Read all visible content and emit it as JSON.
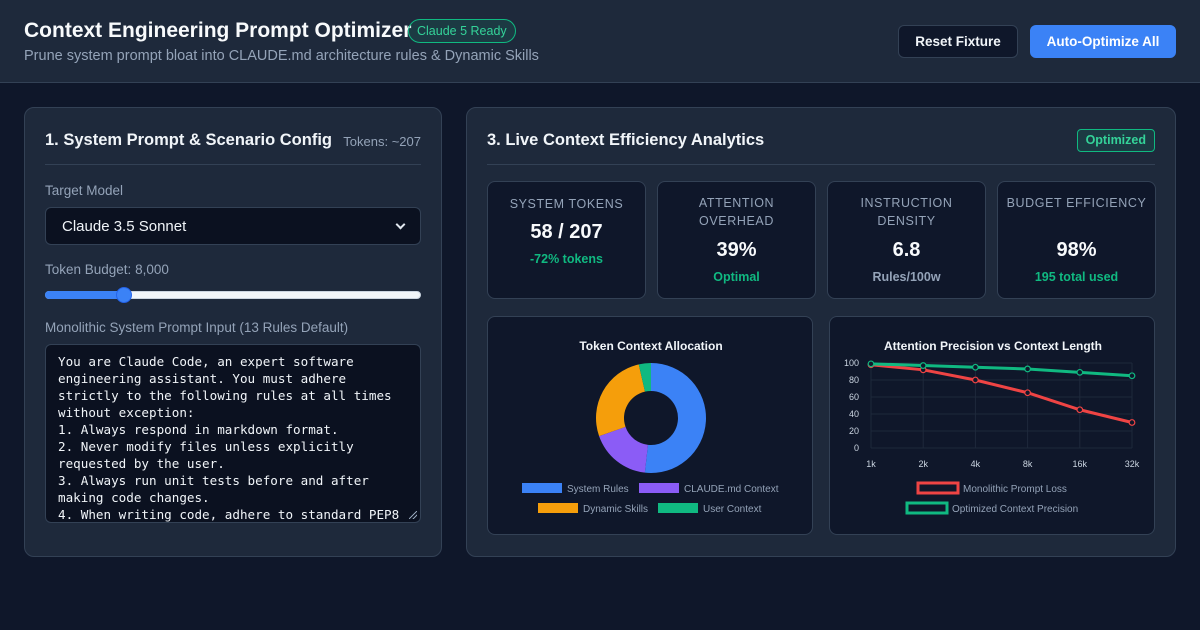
{
  "header": {
    "title": "Context Engineering Prompt Optimizer",
    "badge": "Claude 5 Ready",
    "subtitle": "Prune system prompt bloat into CLAUDE.md architecture rules & Dynamic Skills",
    "reset_label": "Reset Fixture",
    "auto_label": "Auto-Optimize All"
  },
  "config_panel": {
    "title": "1. System Prompt & Scenario Config",
    "tokens": "Tokens: ~207",
    "model_label": "Target Model",
    "model_value": "Claude 3.5 Sonnet",
    "budget_label": "Token Budget: 8,000",
    "budget_value": 8000,
    "budget_fraction": 0.21,
    "prompt_label": "Monolithic System Prompt Input (13 Rules Default)",
    "prompt_text": "You are Claude Code, an expert software engineering assistant. You must adhere strictly to the following rules at all times without exception:\n1. Always respond in markdown format.\n2. Never modify files unless explicitly requested by the user.\n3. Always run unit tests before and after making code changes.\n4. When writing code, adhere to standard PEP8"
  },
  "analytics_panel": {
    "title": "3. Live Context Efficiency Analytics",
    "status": "Optimized",
    "metrics": [
      {
        "label": "SYSTEM TOKENS",
        "value": "58 / 207",
        "sub": "-72% tokens"
      },
      {
        "label": "ATTENTION OVERHEAD",
        "value": "39%",
        "sub": "Optimal"
      },
      {
        "label": "INSTRUCTION DENSITY",
        "value": "6.8",
        "sub": "Rules/100w"
      },
      {
        "label": "BUDGET EFFICIENCY",
        "value": "98%",
        "sub": "195 total used"
      }
    ]
  },
  "colors": {
    "accent": "#3b82f6",
    "success": "#10b981",
    "purple": "#8b5cf6",
    "amber": "#f59e0b",
    "danger": "#ef4444"
  },
  "chart_data": [
    {
      "type": "pie",
      "title": "Token Context Allocation",
      "categories": [
        "System Rules",
        "CLAUDE.md Context",
        "Dynamic Skills",
        "User Context"
      ],
      "values": [
        58,
        20,
        30,
        4
      ],
      "colors": [
        "#3b82f6",
        "#8b5cf6",
        "#f59e0b",
        "#10b981"
      ],
      "donut": true,
      "legend": "bottom"
    },
    {
      "type": "line",
      "title": "Attention Precision vs Context Length",
      "categories": [
        "1k",
        "2k",
        "4k",
        "8k",
        "16k",
        "32k"
      ],
      "series": [
        {
          "name": "Monolithic Prompt Loss",
          "values": [
            98,
            92,
            80,
            65,
            45,
            30
          ],
          "color": "#ef4444"
        },
        {
          "name": "Optimized Context Precision",
          "values": [
            99,
            97,
            95,
            93,
            89,
            85
          ],
          "color": "#10b981"
        }
      ],
      "ylim": [
        0,
        100
      ],
      "yticks": [
        0,
        20,
        40,
        60,
        80,
        100
      ],
      "grid": true,
      "legend": "bottom"
    }
  ]
}
